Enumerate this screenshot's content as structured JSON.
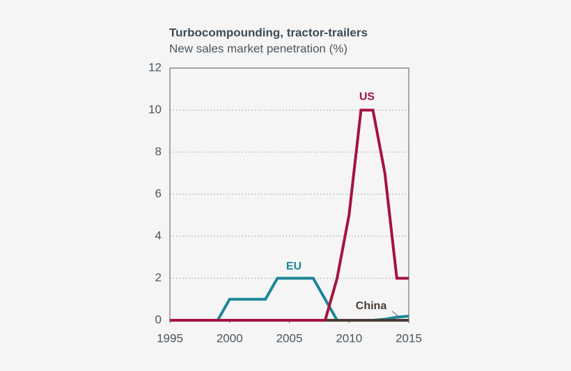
{
  "chart_data": {
    "type": "line",
    "title": "Turbocompounding, tractor-trailers",
    "subtitle": "New sales market penetration (%)",
    "x": [
      1995,
      1996,
      1997,
      1998,
      1999,
      2000,
      2001,
      2002,
      2003,
      2004,
      2005,
      2006,
      2007,
      2008,
      2009,
      2010,
      2011,
      2012,
      2013,
      2014,
      2015
    ],
    "series": [
      {
        "name": "EU",
        "color": "#1b8799",
        "values": [
          0,
          0,
          0,
          0,
          0,
          1,
          1,
          1,
          1,
          2,
          2,
          2,
          2,
          1,
          0,
          0,
          0,
          0,
          0.05,
          0.15,
          0.2
        ]
      },
      {
        "name": "China",
        "color": "#4a3b34",
        "values": [
          null,
          null,
          null,
          null,
          null,
          null,
          null,
          null,
          null,
          null,
          null,
          null,
          null,
          0,
          0,
          0,
          0,
          0,
          0,
          0,
          0
        ]
      },
      {
        "name": "US",
        "color": "#a3143f",
        "values": [
          0,
          0,
          0,
          0,
          0,
          0,
          0,
          0,
          0,
          0,
          0,
          0,
          0,
          0,
          2,
          5,
          10,
          10,
          7,
          2,
          2
        ]
      }
    ],
    "xlim": [
      1995,
      2015
    ],
    "xticks": [
      1995,
      2000,
      2005,
      2010,
      2015
    ],
    "ylim": [
      0,
      12
    ],
    "yticks": [
      0,
      2,
      4,
      6,
      8,
      10,
      12
    ],
    "grid": true
  }
}
